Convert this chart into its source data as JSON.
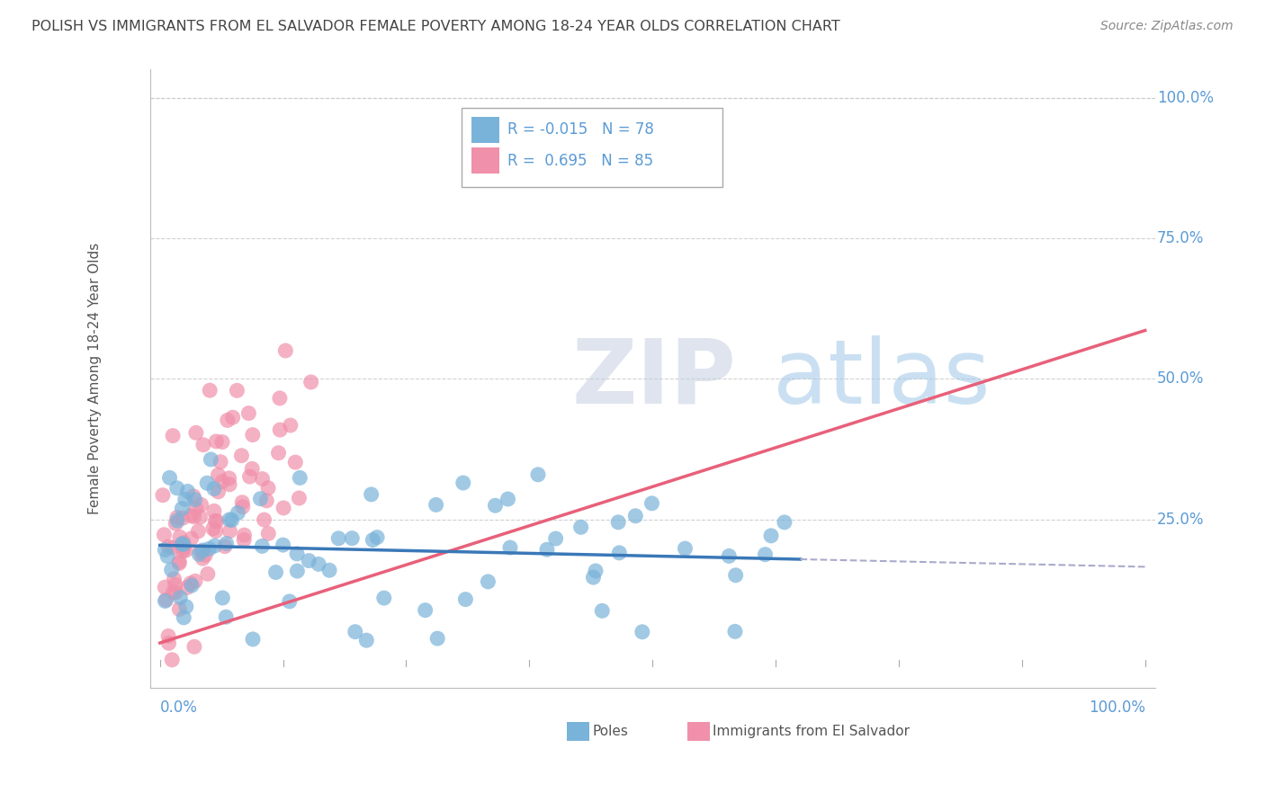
{
  "title": "POLISH VS IMMIGRANTS FROM EL SALVADOR FEMALE POVERTY AMONG 18-24 YEAR OLDS CORRELATION CHART",
  "source": "Source: ZipAtlas.com",
  "ylabel": "Female Poverty Among 18-24 Year Olds",
  "poles_color": "#7ab3d9",
  "salvador_color": "#f090aa",
  "poles_line_color": "#3a78b8",
  "salvador_line_color": "#e8607a",
  "poles_line_dashed_color": "#aaaacc",
  "watermark_zip": "ZIP",
  "watermark_atlas": "atlas",
  "background_color": "#ffffff",
  "grid_color": "#cccccc",
  "title_color": "#444444",
  "axis_label_color": "#5b9bd5",
  "legend_box_color": "#aaaaaa",
  "seed": 12345,
  "poles_N": 78,
  "salvador_N": 85,
  "poles_R": -0.015,
  "salvador_R": 0.695
}
